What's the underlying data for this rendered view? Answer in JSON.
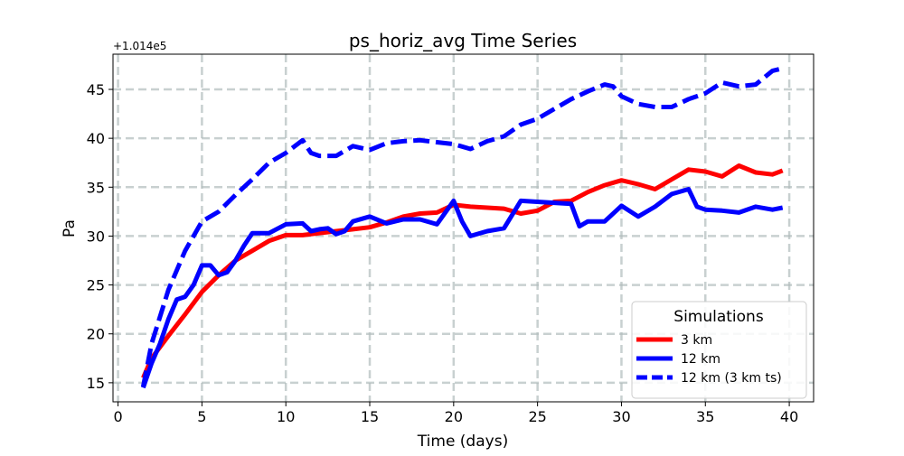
{
  "chart_data": {
    "type": "line",
    "title": "ps_horiz_avg Time Series",
    "xlabel": "Time (days)",
    "ylabel": "Pa",
    "offset_text": "+1.014e5",
    "xlim": [
      -0.3,
      41.45
    ],
    "ylim": [
      13.05,
      48.6
    ],
    "xticks": [
      0,
      5,
      10,
      15,
      20,
      25,
      30,
      35,
      40
    ],
    "yticks": [
      15,
      20,
      25,
      30,
      35,
      40,
      45
    ],
    "grid": true,
    "legend": {
      "title": "Simulations",
      "placement": "lower-right"
    },
    "series": [
      {
        "name": "3 km",
        "color": "#ff0000",
        "style": "solid",
        "x": [
          1.5,
          2,
          3,
          4,
          5,
          6,
          7,
          8,
          9,
          10,
          11,
          12,
          13,
          14,
          15,
          16,
          17,
          18,
          19,
          20,
          21,
          22,
          23,
          24,
          25,
          26,
          27,
          28,
          29,
          30,
          31,
          32,
          33,
          34,
          35,
          36,
          37,
          38,
          39,
          39.6
        ],
        "y": [
          15.5,
          17.5,
          19.8,
          22,
          24.3,
          26,
          27.5,
          28.5,
          29.5,
          30.1,
          30.1,
          30.3,
          30.5,
          30.7,
          30.9,
          31.4,
          32,
          32.3,
          32.4,
          33.2,
          33,
          32.9,
          32.8,
          32.3,
          32.6,
          33.5,
          33.6,
          34.5,
          35.2,
          35.7,
          35.3,
          34.8,
          35.8,
          36.8,
          36.6,
          36.1,
          37.2,
          36.5,
          36.3,
          36.7
        ]
      },
      {
        "name": "12 km",
        "color": "#0000ff",
        "style": "solid",
        "x": [
          1.5,
          2,
          2.5,
          3,
          3.5,
          4,
          4.5,
          5,
          5.5,
          6,
          6.5,
          7,
          7.5,
          8,
          8.5,
          9,
          10,
          11,
          11.5,
          12,
          12.5,
          13,
          13.5,
          14,
          15,
          16,
          17,
          18,
          19,
          20,
          20.5,
          21,
          22,
          23,
          24,
          25,
          26,
          27,
          27.5,
          28,
          29,
          30,
          31,
          32,
          33,
          34,
          34.5,
          35,
          36,
          37,
          38,
          39,
          39.6
        ],
        "y": [
          14.5,
          17,
          19,
          21.5,
          23.5,
          23.8,
          25,
          27,
          27,
          26,
          26.3,
          27.5,
          29,
          30.3,
          30.3,
          30.3,
          31.2,
          31.3,
          30.5,
          30.7,
          30.8,
          30.2,
          30.5,
          31.5,
          32,
          31.3,
          31.7,
          31.7,
          31.2,
          33.6,
          31.5,
          30,
          30.5,
          30.8,
          33.6,
          33.5,
          33.4,
          33.3,
          31,
          31.5,
          31.5,
          33.1,
          32,
          33,
          34.3,
          34.8,
          33,
          32.7,
          32.6,
          32.4,
          33,
          32.7,
          32.9
        ]
      },
      {
        "name": "12 km (3 km ts)",
        "color": "#0000ff",
        "style": "dashed",
        "x": [
          1.5,
          2,
          3,
          4,
          5,
          6,
          7,
          8,
          9,
          10,
          11,
          11.5,
          12,
          13,
          14,
          15,
          16,
          17,
          18,
          19,
          20,
          21,
          22,
          23,
          24,
          25,
          26,
          27,
          28,
          29,
          29.5,
          30,
          31,
          32,
          33,
          34,
          35,
          36,
          37,
          38,
          39,
          39.5
        ],
        "y": [
          14.6,
          19,
          24.5,
          28.5,
          31.5,
          32.5,
          34.2,
          35.8,
          37.5,
          38.5,
          39.8,
          38.5,
          38.2,
          38.2,
          39.2,
          38.8,
          39.5,
          39.7,
          39.8,
          39.6,
          39.4,
          38.9,
          39.7,
          40.2,
          41.4,
          42,
          43,
          44,
          44.8,
          45.5,
          45.3,
          44.3,
          43.5,
          43.2,
          43.2,
          44,
          44.6,
          45.7,
          45.3,
          45.5,
          46.9,
          47.1
        ]
      }
    ]
  }
}
